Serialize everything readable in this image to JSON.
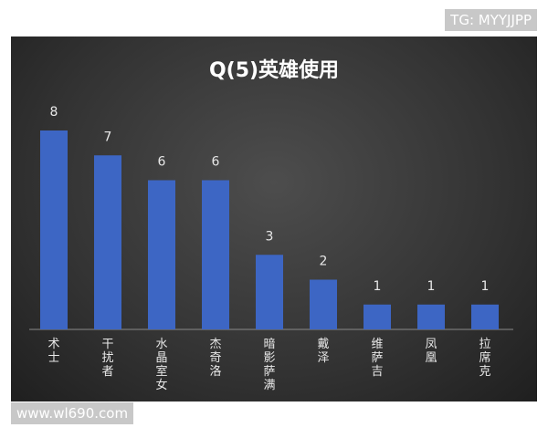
{
  "chart_data": {
    "type": "bar",
    "title": "Q(5)英雄使用",
    "categories": [
      "术士",
      "干扰者",
      "水晶室女",
      "杰奇洛",
      "暗影萨满",
      "戴泽",
      "维萨吉",
      "凤凰",
      "拉席克"
    ],
    "values": [
      8,
      7,
      6,
      6,
      3,
      2,
      1,
      1,
      1
    ],
    "color": "#3d66c4",
    "ylim": [
      0,
      8
    ]
  },
  "watermark_top": "TG: MYYJJPP",
  "watermark_bottom": "www.wl690.com"
}
